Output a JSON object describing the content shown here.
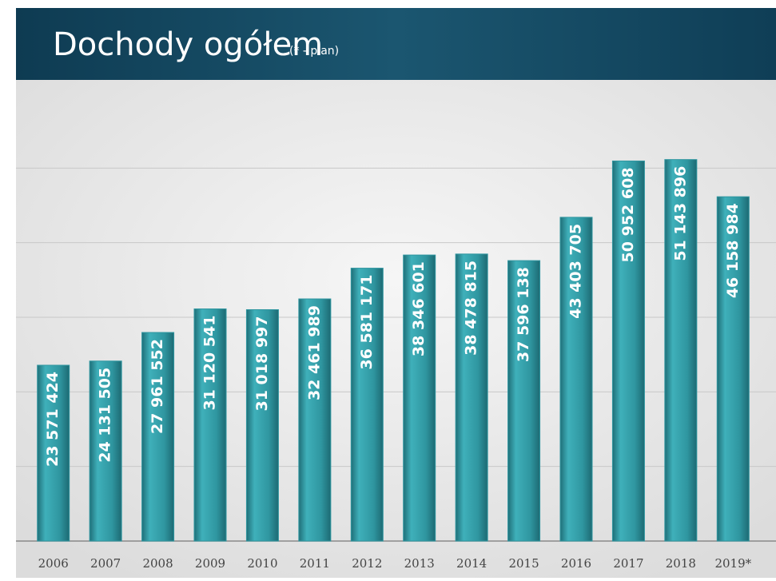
{
  "chart_data": {
    "type": "bar",
    "title": "Dochody ogółem",
    "subtitle": "(* - plan)",
    "categories": [
      "2006",
      "2007",
      "2008",
      "2009",
      "2010",
      "2011",
      "2012",
      "2013",
      "2014",
      "2015",
      "2016",
      "2017",
      "2018",
      "2019*"
    ],
    "values": [
      23571424,
      24131505,
      27961552,
      31120541,
      31018997,
      32461989,
      36581171,
      38346601,
      38478815,
      37596138,
      43403705,
      50952608,
      51143896,
      46158984
    ],
    "value_labels": [
      "23 571 424",
      "24 131 505",
      "27 961 552",
      "31 120 541",
      "31 018 997",
      "32 461 989",
      "36 581 171",
      "38 346 601",
      "38 478 815",
      "37 596 138",
      "43 403 705",
      "50 952 608",
      "51 143 896",
      "46 158 984"
    ],
    "color": "#2f96a0",
    "ylim": [
      0,
      60000000
    ],
    "grid_lines": [
      10000000,
      20000000,
      30000000,
      40000000,
      50000000
    ],
    "grid": true
  }
}
